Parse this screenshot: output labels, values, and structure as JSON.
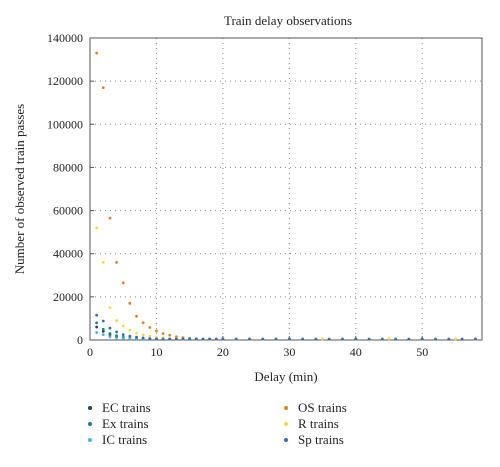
{
  "chart_data": {
    "type": "scatter",
    "title": "Train delay observations",
    "xlabel": "Delay (min)",
    "ylabel": "Number of observed train passes",
    "xlim": [
      0,
      59
    ],
    "ylim": [
      0,
      140000
    ],
    "xticks": [
      0,
      10,
      20,
      30,
      40,
      50
    ],
    "yticks": [
      0,
      20000,
      40000,
      60000,
      80000,
      100000,
      120000,
      140000
    ],
    "grid": true,
    "legend_position": "bottom",
    "series": [
      {
        "name": "EC trains",
        "color": "#1f3f66",
        "x": [
          1,
          2,
          3,
          4,
          5,
          6,
          7,
          8,
          9,
          10,
          12,
          15,
          20,
          30,
          40,
          50,
          58
        ],
        "y": [
          6000,
          4000,
          2500,
          1500,
          900,
          600,
          400,
          300,
          200,
          150,
          100,
          50,
          20,
          10,
          5,
          0,
          0
        ]
      },
      {
        "name": "OS trains",
        "color": "#e0801e",
        "x": [
          1,
          2,
          3,
          4,
          5,
          6,
          7,
          8,
          9,
          10,
          11,
          12,
          13,
          14,
          15,
          16,
          17,
          18,
          19,
          20,
          22,
          24,
          26,
          28,
          30,
          35,
          40,
          45,
          50,
          55,
          58
        ],
        "y": [
          133000,
          117000,
          56500,
          36000,
          26500,
          17000,
          11000,
          8000,
          5800,
          4200,
          3000,
          2200,
          1500,
          1100,
          800,
          600,
          450,
          350,
          250,
          180,
          120,
          80,
          50,
          30,
          20,
          10,
          5,
          0,
          0,
          0,
          0
        ]
      },
      {
        "name": "Ex trains",
        "color": "#1b7f8c",
        "x": [
          1,
          2,
          3,
          4,
          5,
          6,
          7,
          8,
          10,
          15,
          20,
          30,
          40,
          50
        ],
        "y": [
          8000,
          5000,
          3000,
          2000,
          1200,
          800,
          500,
          300,
          150,
          50,
          20,
          5,
          0,
          0
        ]
      },
      {
        "name": "R trains",
        "color": "#f2de3a",
        "x": [
          1,
          2,
          3,
          4,
          5,
          6,
          7,
          8,
          9,
          10,
          11,
          12,
          13,
          14,
          15,
          16,
          17,
          18,
          19,
          20,
          22,
          24,
          26,
          28,
          30,
          35,
          40,
          45,
          50,
          55,
          58
        ],
        "y": [
          52000,
          36000,
          15000,
          9000,
          6500,
          4500,
          3200,
          2300,
          1700,
          1200,
          900,
          700,
          500,
          380,
          280,
          210,
          160,
          120,
          90,
          70,
          50,
          30,
          20,
          10,
          5,
          0,
          0,
          0,
          0,
          0,
          0
        ]
      },
      {
        "name": "IC trains",
        "color": "#4ab4e0",
        "x": [
          1,
          2,
          3,
          4,
          5,
          6,
          7,
          8,
          9,
          10,
          12,
          15,
          20,
          30,
          40,
          50
        ],
        "y": [
          3500,
          2500,
          1500,
          1000,
          700,
          500,
          350,
          250,
          180,
          120,
          80,
          40,
          15,
          5,
          0,
          0
        ]
      },
      {
        "name": "Sp trains",
        "color": "#2b70b8",
        "x": [
          1,
          2,
          3,
          4,
          5,
          6,
          7,
          8,
          9,
          10,
          11,
          12,
          13,
          14,
          15,
          16,
          17,
          18,
          19,
          20,
          22,
          24,
          26,
          28,
          30,
          32,
          34,
          36,
          38,
          40,
          42,
          44,
          46,
          48,
          50,
          52,
          54,
          56,
          58
        ],
        "y": [
          11500,
          8800,
          5500,
          3700,
          2500,
          1800,
          1300,
          900,
          650,
          480,
          350,
          260,
          190,
          140,
          100,
          75,
          55,
          40,
          30,
          20,
          15,
          10,
          5,
          0,
          0,
          0,
          0,
          0,
          0,
          0,
          0,
          0,
          0,
          0,
          0,
          0,
          0,
          0,
          0
        ]
      }
    ]
  }
}
